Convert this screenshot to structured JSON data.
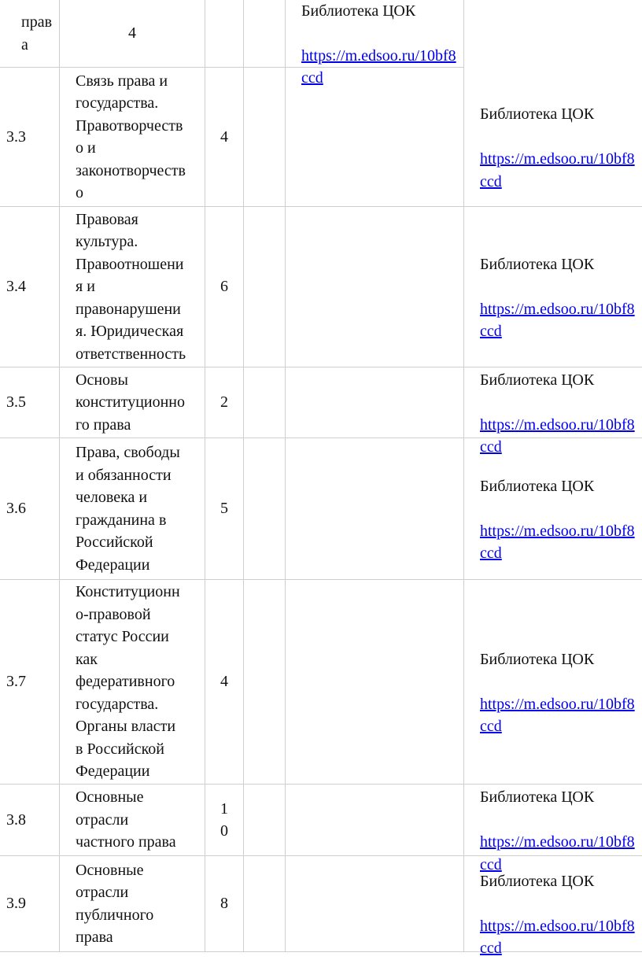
{
  "top_row": {
    "col1": "прав\nа",
    "hours": "4",
    "resource_label": "Библиотека ЦОК",
    "resource_link": "https://m.edsoo.ru/10bf8\nccd"
  },
  "rows": [
    {
      "num": "3.3",
      "topic": "Связь права и\nгосударства.\nПравотворчеств\nо и\nзаконотворчеств\nо",
      "hours": "4",
      "resource_label": "Библиотека ЦОК",
      "resource_link": "https://m.edsoo.ru/10bf8\nccd"
    },
    {
      "num": "3.4",
      "topic": "Правовая\nкультура.\nПравоотношени\nя и\nправонарушени\nя. Юридическая\nответственность",
      "hours": "6",
      "resource_label": "Библиотека ЦОК",
      "resource_link": "https://m.edsoo.ru/10bf8\nccd"
    },
    {
      "num": "3.5",
      "topic": "Основы\nконституционно\nго права",
      "hours": "2",
      "resource_label": "Библиотека ЦОК",
      "resource_link": "https://m.edsoo.ru/10bf8\nccd"
    },
    {
      "num": "3.6",
      "topic": "Права, свободы\nи обязанности\nчеловека и\nгражданина в\nРоссийской\nФедерации",
      "hours": "5",
      "resource_label": "Библиотека ЦОК",
      "resource_link": "https://m.edsoo.ru/10bf8\nccd"
    },
    {
      "num": "3.7",
      "topic": "Конституционн\nо-правовой\nстатус России\nкак\nфедеративного\nгосударства.\nОрганы власти\nв Российской\nФедерации",
      "hours": "4",
      "resource_label": "Библиотека ЦОК",
      "resource_link": "https://m.edsoo.ru/10bf8\nccd"
    },
    {
      "num": "3.8",
      "topic": "Основные\nотрасли\nчастного права",
      "hours": "1\n0",
      "resource_label": "Библиотека ЦОК",
      "resource_link": "https://m.edsoo.ru/10bf8\nccd"
    },
    {
      "num": "3.9",
      "topic": "Основные\nотрасли\nпубличного\nправа",
      "hours": "8",
      "resource_label": "Библиотека ЦОК",
      "resource_link": "https://m.edsoo.ru/10bf8\nccd"
    }
  ],
  "colors": {
    "link": "#0000ee",
    "border": "#cfcfcf"
  }
}
